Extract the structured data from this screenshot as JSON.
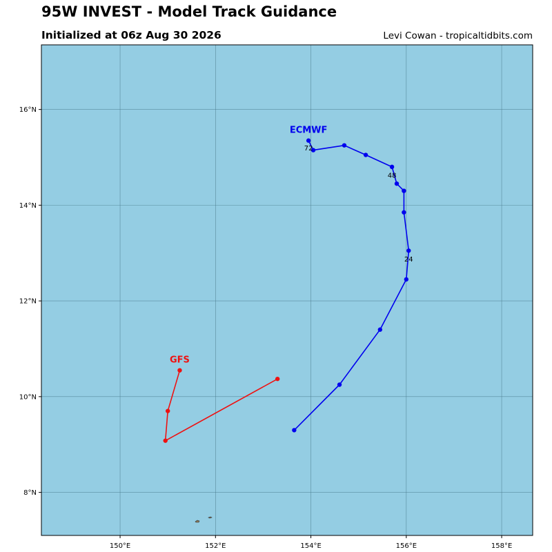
{
  "header": {
    "title": "95W INVEST - Model Track Guidance",
    "subtitle": "Initialized at 06z Aug 30 2026",
    "credit": "Levi Cowan - tropicaltidbits.com"
  },
  "map": {
    "ocean_color": "#94cde3",
    "grid_color": "#4a7a8c",
    "land_color": "#8a7a5a",
    "lon_range": [
      148.35,
      158.65
    ],
    "lat_range": [
      7.1,
      17.35
    ],
    "lon_ticks": [
      {
        "value": 150,
        "label": "150°E"
      },
      {
        "value": 152,
        "label": "152°E"
      },
      {
        "value": 154,
        "label": "154°E"
      },
      {
        "value": 156,
        "label": "156°E"
      },
      {
        "value": 158,
        "label": "158°E"
      }
    ],
    "lat_ticks": [
      {
        "value": 8,
        "label": "8°N"
      },
      {
        "value": 10,
        "label": "10°N"
      },
      {
        "value": 12,
        "label": "12°N"
      },
      {
        "value": 14,
        "label": "14°N"
      },
      {
        "value": 16,
        "label": "16°N"
      }
    ]
  },
  "chart_data": {
    "type": "map-tracks",
    "title": "95W INVEST - Model Track Guidance",
    "subtitle": "Initialized at 06z Aug 30 2026",
    "grid": true,
    "series": [
      {
        "name": "GFS",
        "color": "#ee1111",
        "points": [
          {
            "lon": 153.3,
            "lat": 10.37
          },
          {
            "lon": 150.95,
            "lat": 9.08
          },
          {
            "lon": 151.0,
            "lat": 9.7
          },
          {
            "lon": 151.25,
            "lat": 10.55
          }
        ]
      },
      {
        "name": "ECMWF",
        "color": "#0000ee",
        "points": [
          {
            "lon": 153.65,
            "lat": 9.3
          },
          {
            "lon": 154.6,
            "lat": 10.25
          },
          {
            "lon": 155.45,
            "lat": 11.4
          },
          {
            "lon": 156.0,
            "lat": 12.45
          },
          {
            "lon": 156.05,
            "lat": 13.05
          },
          {
            "lon": 155.95,
            "lat": 13.85
          },
          {
            "lon": 155.95,
            "lat": 14.3
          },
          {
            "lon": 155.8,
            "lat": 14.45
          },
          {
            "lon": 155.7,
            "lat": 14.8
          },
          {
            "lon": 155.15,
            "lat": 15.05
          },
          {
            "lon": 154.7,
            "lat": 15.25
          },
          {
            "lon": 154.05,
            "lat": 15.15
          },
          {
            "lon": 153.95,
            "lat": 15.35
          }
        ],
        "hour_labels": [
          {
            "text": "24",
            "lon": 156.05,
            "lat": 12.88
          },
          {
            "text": "48",
            "lon": 155.7,
            "lat": 14.63
          },
          {
            "text": "72",
            "lon": 153.95,
            "lat": 15.2
          }
        ]
      }
    ]
  }
}
